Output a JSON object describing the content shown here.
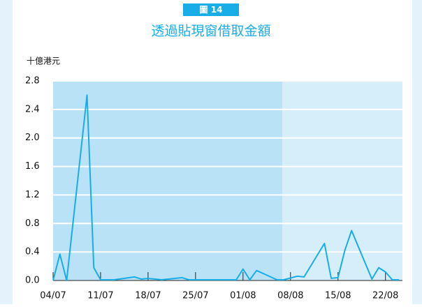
{
  "chart_data": {
    "type": "line",
    "figure_label": "圖 14",
    "title": "透過貼現窗借取金額",
    "y_label": "十億港元",
    "x": [
      0,
      1,
      2,
      5,
      6,
      7,
      9,
      12,
      13,
      14,
      16,
      19,
      20,
      27,
      28,
      29,
      30,
      33,
      34,
      36,
      37,
      40,
      41,
      42,
      43,
      44,
      47,
      48,
      49,
      50,
      51
    ],
    "series": [
      {
        "color": "#18ade6",
        "values": [
          0,
          0.37,
          0,
          2.6,
          0.18,
          0.01,
          0.01,
          0.05,
          0.02,
          0.03,
          0.01,
          0.04,
          0.01,
          0.01,
          0.16,
          0.01,
          0.14,
          0.01,
          0.01,
          0.06,
          0.05,
          0.52,
          0.03,
          0.04,
          0.42,
          0.7,
          0.02,
          0.18,
          0.12,
          0.01,
          0.01
        ]
      }
    ],
    "xlim": [
      0,
      51.5
    ],
    "xticks": [
      {
        "value": 0,
        "label": "04/07"
      },
      {
        "value": 7,
        "label": "11/07"
      },
      {
        "value": 14,
        "label": "18/07"
      },
      {
        "value": 21,
        "label": "25/07"
      },
      {
        "value": 28,
        "label": "01/08"
      },
      {
        "value": 35,
        "label": "08/08"
      },
      {
        "value": 42,
        "label": "15/08"
      },
      {
        "value": 49,
        "label": "22/08"
      }
    ],
    "ylim": [
      0,
      2.8
    ],
    "yticks": [
      {
        "value": 0,
        "label": "0.0"
      },
      0.4,
      0.8,
      1.2,
      1.6,
      {
        "value": 2,
        "label": "2.0"
      },
      2.4,
      2.8
    ],
    "grid": true,
    "shaded_regions": [
      {
        "from": 0,
        "to": 33.8,
        "color": "#b9e2f7"
      },
      {
        "from": 33.8,
        "to": 51.5,
        "color": "#d6eefa"
      }
    ]
  }
}
